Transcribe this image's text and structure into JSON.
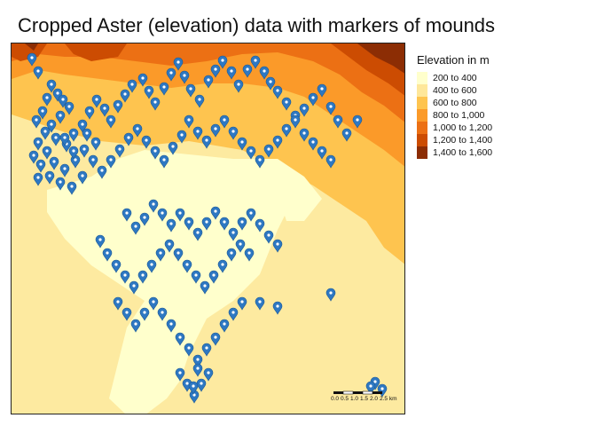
{
  "title": "Cropped Aster (elevation) data with markers of mounds",
  "legend": {
    "title": "Elevation in m",
    "classes": [
      {
        "label": "200 to 400",
        "color": "#ffffcc"
      },
      {
        "label": "400 to 600",
        "color": "#fee79a"
      },
      {
        "label": "600 to 800",
        "color": "#fec44f"
      },
      {
        "label": "800 to 1,000",
        "color": "#fb9a29"
      },
      {
        "label": "1,000 to 1,200",
        "color": "#ec7014"
      },
      {
        "label": "1,200 to 1,400",
        "color": "#cc4c02"
      },
      {
        "label": "1,400 to 1,600",
        "color": "#8c2d04"
      }
    ]
  },
  "scalebar": {
    "ticks": [
      "0.0",
      "0.5",
      "1.0",
      "1.5",
      "2.0",
      "2.5 km"
    ]
  },
  "marker": {
    "icon": "map-pin-icon",
    "color": "#2e78c2"
  }
}
